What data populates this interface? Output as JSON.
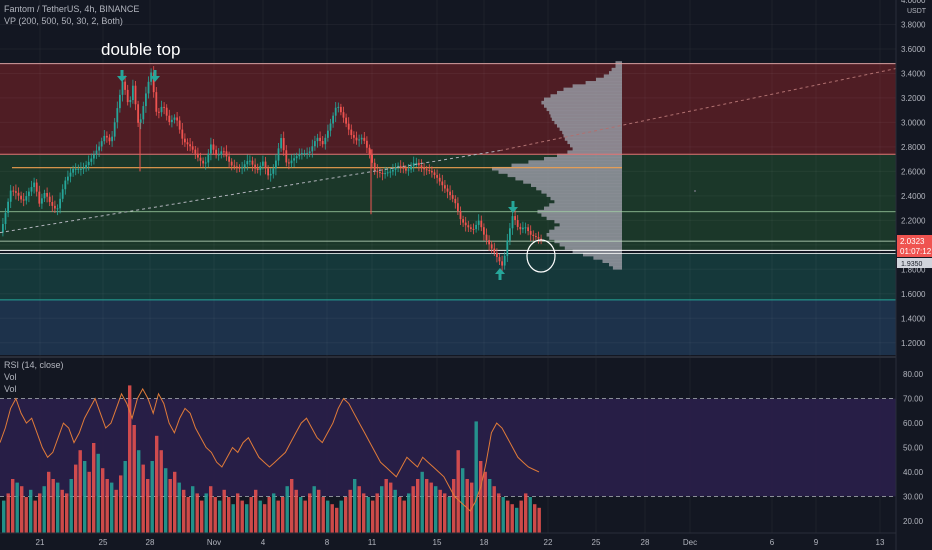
{
  "header": {
    "title": "Fantom / TetherUS, 4h, BINANCE",
    "indicator": "VP (200, 500, 50, 30, 2, Both)"
  },
  "annotation": {
    "text": "double top"
  },
  "price_axis": {
    "unit": "USDT",
    "ticks": [
      "4.0000",
      "3.8000",
      "3.6000",
      "3.4000",
      "3.2000",
      "3.0000",
      "2.8000",
      "2.6000",
      "2.4000",
      "2.2000",
      "2.0000",
      "1.8000",
      "1.6000",
      "1.4000",
      "1.2000"
    ],
    "last_price_label": "2.0323",
    "countdown_label": "01:07:12",
    "secondary_label": "1.9350"
  },
  "rsi_pane": {
    "title": "RSI (14, close)",
    "vol_label_1": "Vol",
    "vol_label_2": "Vol",
    "ticks": [
      "80.00",
      "70.00",
      "60.00",
      "50.00",
      "40.00",
      "30.00",
      "20.00"
    ]
  },
  "time_axis": {
    "ticks": [
      "21",
      "25",
      "28",
      "Nov",
      "4",
      "8",
      "11",
      "15",
      "18",
      "22",
      "25",
      "28",
      "Dec",
      "6",
      "9",
      "13"
    ]
  },
  "colors": {
    "background": "#131722",
    "zone_red": "#5a1e24",
    "zone_green": "#1d3b2a",
    "zone_teal": "#153a3c",
    "zone_blue": "#1f3550",
    "up": "#26a69a",
    "down": "#ef5350",
    "rsi_line": "#e07b39",
    "rsi_band": "#2a1f4a",
    "profile": "#9598a1",
    "arrow": "#26a69a"
  },
  "chart_data": {
    "type": "candlestick",
    "ylim": [
      1.1,
      4.0
    ],
    "levels": {
      "resistance_top": 3.48,
      "zone_red_bottom": 2.74,
      "poc_line": 2.63,
      "support_mid": 2.27,
      "support_lower": 2.03,
      "support_white_a": 1.955,
      "support_white_b": 1.93,
      "support_teal_bottom": 1.55
    },
    "price_path": [
      [
        0,
        2.1
      ],
      [
        10,
        2.45
      ],
      [
        16,
        2.42
      ],
      [
        22,
        2.35
      ],
      [
        34,
        2.52
      ],
      [
        38,
        2.33
      ],
      [
        44,
        2.43
      ],
      [
        50,
        2.33
      ],
      [
        56,
        2.28
      ],
      [
        64,
        2.52
      ],
      [
        72,
        2.62
      ],
      [
        82,
        2.62
      ],
      [
        90,
        2.7
      ],
      [
        98,
        2.8
      ],
      [
        104,
        2.9
      ],
      [
        110,
        2.83
      ],
      [
        116,
        3.1
      ],
      [
        122,
        3.35
      ],
      [
        128,
        3.12
      ],
      [
        132,
        3.3
      ],
      [
        138,
        2.95
      ],
      [
        144,
        3.2
      ],
      [
        150,
        3.42
      ],
      [
        156,
        3.05
      ],
      [
        162,
        3.15
      ],
      [
        168,
        3.0
      ],
      [
        175,
        3.05
      ],
      [
        182,
        2.85
      ],
      [
        190,
        2.8
      ],
      [
        198,
        2.7
      ],
      [
        204,
        2.65
      ],
      [
        210,
        2.82
      ],
      [
        216,
        2.72
      ],
      [
        222,
        2.78
      ],
      [
        230,
        2.65
      ],
      [
        240,
        2.62
      ],
      [
        248,
        2.7
      ],
      [
        256,
        2.6
      ],
      [
        262,
        2.68
      ],
      [
        268,
        2.55
      ],
      [
        274,
        2.65
      ],
      [
        280,
        2.88
      ],
      [
        286,
        2.65
      ],
      [
        292,
        2.7
      ],
      [
        300,
        2.75
      ],
      [
        308,
        2.75
      ],
      [
        316,
        2.88
      ],
      [
        322,
        2.82
      ],
      [
        330,
        3.0
      ],
      [
        336,
        3.15
      ],
      [
        342,
        3.05
      ],
      [
        350,
        2.9
      ],
      [
        356,
        2.85
      ],
      [
        362,
        2.88
      ],
      [
        368,
        2.75
      ],
      [
        374,
        2.6
      ],
      [
        382,
        2.58
      ],
      [
        390,
        2.6
      ],
      [
        398,
        2.65
      ],
      [
        406,
        2.6
      ],
      [
        414,
        2.68
      ],
      [
        422,
        2.62
      ],
      [
        430,
        2.6
      ],
      [
        436,
        2.55
      ],
      [
        442,
        2.48
      ],
      [
        448,
        2.42
      ],
      [
        454,
        2.35
      ],
      [
        460,
        2.2
      ],
      [
        466,
        2.15
      ],
      [
        472,
        2.12
      ],
      [
        478,
        2.2
      ],
      [
        484,
        2.06
      ],
      [
        490,
        1.98
      ],
      [
        496,
        1.9
      ],
      [
        502,
        1.82
      ],
      [
        506,
        2.02
      ],
      [
        512,
        2.25
      ],
      [
        518,
        2.12
      ],
      [
        524,
        2.15
      ],
      [
        530,
        2.08
      ],
      [
        536,
        2.06
      ],
      [
        541,
        2.03
      ]
    ],
    "volume_profile": {
      "price_top": 3.5,
      "price_bottom": 1.8,
      "widths": [
        0.05,
        0.05,
        0.08,
        0.1,
        0.14,
        0.2,
        0.28,
        0.38,
        0.45,
        0.5,
        0.55,
        0.6,
        0.62,
        0.6,
        0.58,
        0.56,
        0.55,
        0.54,
        0.52,
        0.5,
        0.48,
        0.46,
        0.45,
        0.44,
        0.42,
        0.4,
        0.38,
        0.42,
        0.5,
        0.6,
        0.72,
        0.85,
        1.0,
        0.95,
        0.88,
        0.82,
        0.76,
        0.7,
        0.66,
        0.62,
        0.58,
        0.55,
        0.52,
        0.56,
        0.6,
        0.65,
        0.62,
        0.58,
        0.52,
        0.48,
        0.52,
        0.56,
        0.58,
        0.56,
        0.52,
        0.48,
        0.44,
        0.38,
        0.3,
        0.22,
        0.15,
        0.1,
        0.07
      ]
    },
    "rsi": [
      52,
      58,
      66,
      70,
      64,
      60,
      62,
      56,
      50,
      46,
      48,
      54,
      60,
      58,
      52,
      56,
      62,
      66,
      70,
      64,
      58,
      60,
      66,
      72,
      68,
      62,
      70,
      74,
      70,
      64,
      72,
      68,
      60,
      56,
      62,
      66,
      64,
      58,
      54,
      50,
      48,
      44,
      42,
      46,
      50,
      48,
      52,
      54,
      50,
      46,
      44,
      42,
      44,
      46,
      48,
      52,
      56,
      60,
      62,
      58,
      54,
      52,
      56,
      60,
      66,
      70,
      68,
      64,
      60,
      56,
      52,
      48,
      44,
      42,
      40,
      38,
      42,
      46,
      44,
      42,
      46,
      44,
      42,
      40,
      38,
      34,
      30,
      28,
      26,
      24,
      28,
      34,
      44,
      56,
      60,
      58,
      54,
      50,
      46,
      44,
      42,
      41,
      40
    ],
    "volume": [
      18,
      22,
      30,
      28,
      26,
      20,
      24,
      18,
      22,
      26,
      34,
      30,
      28,
      24,
      22,
      30,
      38,
      46,
      40,
      34,
      50,
      44,
      36,
      30,
      28,
      24,
      32,
      40,
      82,
      60,
      46,
      38,
      30,
      40,
      54,
      46,
      36,
      30,
      34,
      28,
      24,
      20,
      26,
      22,
      18,
      22,
      26,
      20,
      18,
      24,
      20,
      16,
      22,
      18,
      16,
      20,
      24,
      18,
      16,
      20,
      22,
      18,
      20,
      26,
      30,
      24,
      20,
      18,
      22,
      26,
      24,
      20,
      18,
      16,
      14,
      18,
      20,
      24,
      30,
      26,
      22,
      20,
      18,
      22,
      26,
      30,
      28,
      24,
      20,
      18,
      22,
      26,
      30,
      34,
      30,
      28,
      26,
      24,
      22,
      20,
      30,
      46,
      36,
      30,
      28,
      62,
      40,
      34,
      30,
      26,
      22,
      20,
      18,
      16,
      14,
      18,
      22,
      20,
      16,
      14,
      12
    ]
  }
}
